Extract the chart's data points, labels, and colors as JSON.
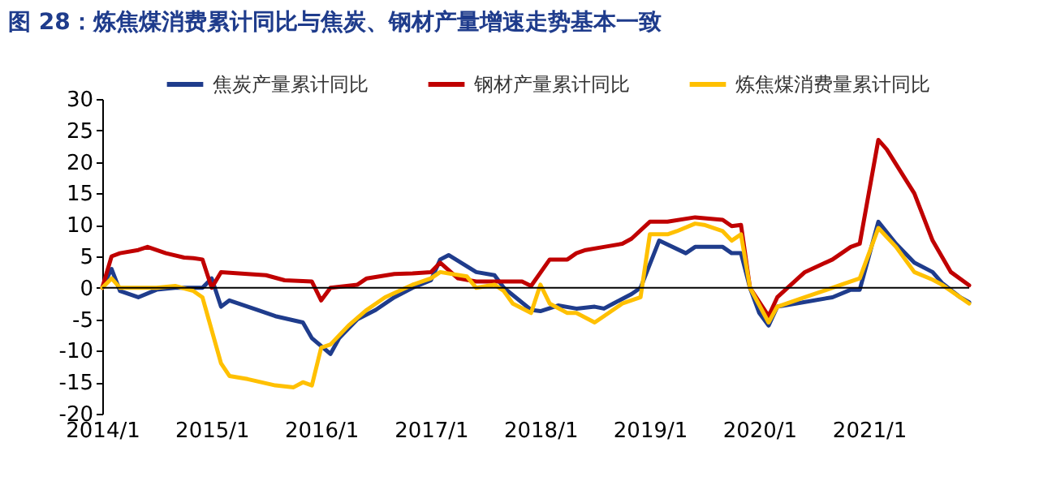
{
  "chart_data": {
    "type": "line",
    "title": "图 28：炼焦煤消费累计同比与焦炭、钢材产量增速走势基本一致",
    "xlim": [
      "2014-01",
      "2021-12"
    ],
    "xticks": [
      {
        "value": "2014-01",
        "label": "2014/1"
      },
      {
        "value": "2015-01",
        "label": "2015/1"
      },
      {
        "value": "2016-01",
        "label": "2016/1"
      },
      {
        "value": "2017-01",
        "label": "2017/1"
      },
      {
        "value": "2018-01",
        "label": "2018/1"
      },
      {
        "value": "2019-01",
        "label": "2019/1"
      },
      {
        "value": "2020-01",
        "label": "2020/1"
      },
      {
        "value": "2021-01",
        "label": "2021/1"
      }
    ],
    "ylim": [
      -20,
      30
    ],
    "yticks": [
      -20,
      -15,
      -10,
      -5,
      0,
      5,
      10,
      15,
      20,
      25,
      30
    ],
    "grid": false,
    "legend": "top",
    "marker": "none",
    "line_style": "solid",
    "ref_lines": [
      {
        "axis": "y",
        "value": 0,
        "color": "#000000"
      }
    ],
    "series": [
      {
        "name": "焦炭产量累计同比",
        "color": "#1f3c8c",
        "x": [
          "2014-01",
          "2014-02",
          "2014-03",
          "2014-05",
          "2014-07",
          "2014-09",
          "2014-12",
          "2015-01",
          "2015-02",
          "2015-03",
          "2015-06",
          "2015-08",
          "2015-11",
          "2015-12",
          "2016-02",
          "2016-03",
          "2016-05",
          "2016-07",
          "2016-09",
          "2016-11",
          "2017-01",
          "2017-02",
          "2017-03",
          "2017-06",
          "2017-08",
          "2017-09",
          "2017-12",
          "2018-01",
          "2018-03",
          "2018-05",
          "2018-07",
          "2018-08",
          "2018-09",
          "2018-11",
          "2018-12",
          "2019-02",
          "2019-05",
          "2019-06",
          "2019-09",
          "2019-10",
          "2019-11",
          "2019-12",
          "2020-01",
          "2020-02",
          "2020-03",
          "2020-05",
          "2020-09",
          "2020-11",
          "2020-12",
          "2021-02",
          "2021-04",
          "2021-06",
          "2021-08",
          "2021-09",
          "2021-11",
          "2021-12"
        ],
        "values": [
          0,
          3,
          -0.5,
          -1.5,
          -0.3,
          0,
          0,
          1.5,
          -3,
          -2,
          -3.5,
          -4.5,
          -5.5,
          -8,
          -10.5,
          -8,
          -5,
          -3.5,
          -1.5,
          0,
          1.2,
          4.5,
          5.2,
          2.5,
          2,
          0,
          -3.5,
          -3.7,
          -2.8,
          -3.3,
          -3,
          -3.3,
          -2.5,
          -1,
          0,
          7.5,
          5.5,
          6.5,
          6.5,
          5.5,
          5.5,
          0,
          -4,
          -6,
          -3,
          -2.5,
          -1.5,
          -0.3,
          -0.3,
          10.5,
          7,
          4,
          2.5,
          0.8,
          -1.5,
          -2.3
        ]
      },
      {
        "name": "钢材产量累计同比",
        "color": "#c00000",
        "x": [
          "2014-01",
          "2014-02",
          "2014-03",
          "2014-05",
          "2014-06",
          "2014-08",
          "2014-10",
          "2014-11",
          "2014-12",
          "2015-01",
          "2015-02",
          "2015-05",
          "2015-07",
          "2015-09",
          "2015-12",
          "2016-01",
          "2016-02",
          "2016-05",
          "2016-06",
          "2016-09",
          "2016-11",
          "2017-01",
          "2017-02",
          "2017-04",
          "2017-06",
          "2017-09",
          "2017-11",
          "2017-12",
          "2018-02",
          "2018-04",
          "2018-05",
          "2018-06",
          "2018-08",
          "2018-10",
          "2018-11",
          "2019-01",
          "2019-03",
          "2019-06",
          "2019-09",
          "2019-10",
          "2019-11",
          "2019-12",
          "2020-02",
          "2020-03",
          "2020-06",
          "2020-09",
          "2020-11",
          "2020-12",
          "2021-02",
          "2021-03",
          "2021-06",
          "2021-08",
          "2021-10",
          "2021-12"
        ],
        "values": [
          0,
          5,
          5.5,
          6,
          6.5,
          5.5,
          4.8,
          4.7,
          4.5,
          0,
          2.5,
          2.2,
          2,
          1.2,
          1,
          -2,
          0,
          0.5,
          1.5,
          2.2,
          2.3,
          2.5,
          4,
          1.5,
          1,
          1,
          1,
          0.3,
          4.5,
          4.5,
          5.5,
          6,
          6.5,
          7,
          7.8,
          10.5,
          10.5,
          11.2,
          10.8,
          9.8,
          10,
          0,
          -4.5,
          -1.5,
          2.5,
          4.5,
          6.5,
          7,
          23.5,
          22,
          15,
          7.5,
          2.5,
          0.4
        ]
      },
      {
        "name": "炼焦煤消费量累计同比",
        "color": "#ffc000",
        "x": [
          "2014-01",
          "2014-02",
          "2014-03",
          "2014-07",
          "2014-09",
          "2014-11",
          "2014-12",
          "2015-02",
          "2015-03",
          "2015-05",
          "2015-08",
          "2015-10",
          "2015-11",
          "2015-12",
          "2016-01",
          "2016-02",
          "2016-04",
          "2016-06",
          "2016-08",
          "2016-11",
          "2017-01",
          "2017-02",
          "2017-05",
          "2017-06",
          "2017-08",
          "2017-09",
          "2017-10",
          "2017-12",
          "2018-01",
          "2018-02",
          "2018-04",
          "2018-05",
          "2018-07",
          "2018-08",
          "2018-10",
          "2018-12",
          "2019-01",
          "2019-03",
          "2019-04",
          "2019-06",
          "2019-07",
          "2019-09",
          "2019-10",
          "2019-11",
          "2019-12",
          "2020-02",
          "2020-03",
          "2020-06",
          "2020-10",
          "2020-12",
          "2021-02",
          "2021-04",
          "2021-06",
          "2021-08",
          "2021-09",
          "2021-12"
        ],
        "values": [
          0,
          1.5,
          0,
          0,
          0.3,
          -0.5,
          -1.5,
          -12,
          -14,
          -14.5,
          -15.5,
          -15.8,
          -15,
          -15.5,
          -9.5,
          -9,
          -6,
          -3.5,
          -1.5,
          0.5,
          1.5,
          2.5,
          1.8,
          0,
          0.5,
          -0.5,
          -2.5,
          -4,
          0.5,
          -2.5,
          -4,
          -4,
          -5.5,
          -4.5,
          -2.5,
          -1.5,
          8.5,
          8.5,
          9,
          10.2,
          10,
          9,
          7.5,
          8.5,
          0,
          -5.5,
          -3,
          -1.5,
          0.5,
          1.5,
          9.5,
          6.5,
          2.5,
          1.3,
          0.5,
          -2.5
        ]
      }
    ]
  }
}
